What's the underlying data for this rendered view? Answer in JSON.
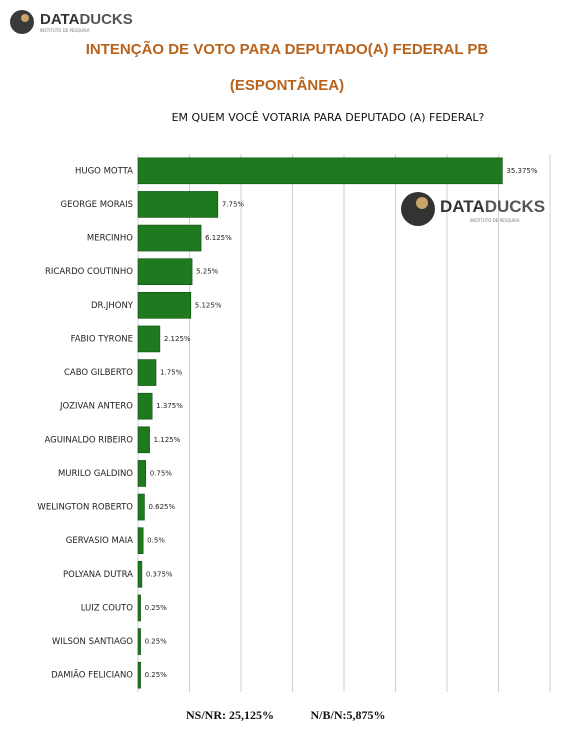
{
  "logo": {
    "brand_a": "DATA",
    "brand_b": "DUCKS",
    "tagline": "INSTITUTO DE PESQUISA"
  },
  "chart_data": {
    "type": "barh",
    "title": "INTENÇÃO DE VOTO PARA DEPUTADO(A) FEDERAL PB",
    "title_line2": "(ESPONTÂNEA)",
    "subtitle": "EM QUEM VOCÊ VOTARIA PARA DEPUTADO (A) FEDERAL?",
    "categories": [
      "HUGO MOTTA",
      "GEORGE MORAIS",
      "MERCINHO",
      "RICARDO COUTINHO",
      "DR.JHONY",
      "FABIO TYRONE",
      "CABO GILBERTO",
      "JOZIVAN ANTERO",
      "AGUINALDO RIBEIRO",
      "MURILO GALDINO",
      "WELINGTON ROBERTO",
      "GERVASIO MAIA",
      "POLYANA DUTRA",
      "LUIZ COUTO",
      "WILSON SANTIAGO",
      "DAMIÃO FELICIANO"
    ],
    "values": [
      35.375,
      7.75,
      6.125,
      5.25,
      5.125,
      2.125,
      1.75,
      1.375,
      1.125,
      0.75,
      0.625,
      0.5,
      0.375,
      0.25,
      0.25,
      0.25
    ],
    "value_labels": [
      "35.375%",
      "7.75%",
      "6.125%",
      "5.25%",
      "5.125%",
      "2.125%",
      "1.75%",
      "1.375%",
      "1.125%",
      "0.75%",
      "0.625%",
      "0.5%",
      "0.375%",
      "0.25%",
      "0.25%",
      "0.25%"
    ],
    "color": "#1f7a1f",
    "xlim": [
      0,
      40
    ],
    "xticks": [
      0,
      5,
      10,
      15,
      20,
      25,
      30,
      35,
      40
    ],
    "grid": true
  },
  "footer": {
    "ns_nr": "NS/NR: 25,125%",
    "nbn": "N/B/N:5,875%"
  }
}
